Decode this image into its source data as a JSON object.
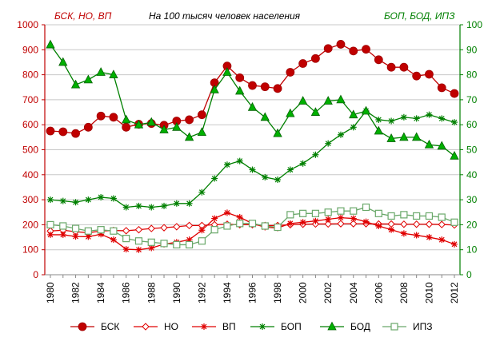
{
  "chart_data": {
    "type": "line",
    "title": "На 100 тысяч человек населения",
    "left_axis_title": "БСК, НО, ВП",
    "right_axis_title": "БОП, БОД, ИПЗ",
    "colors": {
      "left_axis": "#c00000",
      "right_axis": "#008000",
      "grid": "#c8c8c8"
    },
    "x": [
      1980,
      1981,
      1982,
      1983,
      1984,
      1985,
      1986,
      1987,
      1988,
      1989,
      1990,
      1991,
      1992,
      1993,
      1994,
      1995,
      1996,
      1997,
      1998,
      1999,
      2000,
      2001,
      2002,
      2003,
      2004,
      2005,
      2006,
      2007,
      2008,
      2009,
      2010,
      2011,
      2012
    ],
    "x_tick_labels": [
      "1980",
      "1982",
      "1984",
      "1986",
      "1988",
      "1990",
      "1992",
      "1994",
      "1996",
      "1998",
      "2000",
      "2002",
      "2004",
      "2006",
      "2008",
      "2010",
      "2012"
    ],
    "y_left": {
      "min": 0,
      "max": 1000,
      "ticks": [
        "0",
        "100",
        "200",
        "300",
        "400",
        "500",
        "600",
        "700",
        "800",
        "900",
        "1000"
      ]
    },
    "y_right": {
      "min": 0,
      "max": 100,
      "ticks": [
        "0",
        "10",
        "20",
        "30",
        "40",
        "50",
        "60",
        "70",
        "80",
        "90",
        "100"
      ]
    },
    "grid": true,
    "legend_position": "bottom",
    "series": [
      {
        "name": "БСК",
        "axis": "left",
        "color": "#c00000",
        "marker": "filled-circle",
        "values": [
          575,
          572,
          565,
          590,
          635,
          630,
          590,
          602,
          605,
          598,
          615,
          620,
          640,
          768,
          835,
          788,
          757,
          752,
          745,
          810,
          845,
          865,
          905,
          922,
          895,
          902,
          860,
          830,
          830,
          795,
          802,
          748,
          725
        ]
      },
      {
        "name": "НО",
        "axis": "left",
        "color": "#e00000",
        "marker": "open-diamond",
        "values": [
          175,
          178,
          172,
          168,
          175,
          177,
          176,
          180,
          185,
          188,
          192,
          197,
          197,
          200,
          202,
          200,
          200,
          197,
          197,
          200,
          202,
          203,
          203,
          204,
          204,
          204,
          203,
          203,
          202,
          202,
          202,
          201,
          199
        ]
      },
      {
        "name": "ВП",
        "axis": "left",
        "color": "#e00000",
        "marker": "star",
        "values": [
          160,
          160,
          153,
          152,
          162,
          140,
          102,
          100,
          107,
          122,
          130,
          140,
          178,
          225,
          248,
          230,
          205,
          190,
          187,
          205,
          210,
          215,
          222,
          228,
          225,
          212,
          195,
          180,
          165,
          158,
          150,
          140,
          122
        ]
      },
      {
        "name": "БОП",
        "axis": "right",
        "color": "#008000",
        "marker": "star",
        "values": [
          30,
          29.5,
          29,
          30,
          31,
          30.5,
          27,
          27.5,
          27,
          27.5,
          28.5,
          28.5,
          33,
          38.5,
          44,
          45.5,
          42,
          39,
          38,
          42,
          44.5,
          48,
          52.5,
          56,
          59,
          65.5,
          62,
          61.5,
          63,
          62.5,
          64,
          62.5,
          61
        ]
      },
      {
        "name": "БОД",
        "axis": "right",
        "color": "#008000",
        "marker": "filled-triangle",
        "values": [
          92,
          85,
          76,
          78,
          81,
          80,
          62,
          60,
          61,
          58,
          59,
          55,
          57,
          74,
          81,
          73.5,
          67,
          63,
          56.5,
          64.5,
          69.5,
          65,
          69.5,
          70,
          64,
          65.5,
          57.5,
          54.5,
          55,
          55,
          52,
          51.5,
          47.5
        ]
      },
      {
        "name": "ИПЗ",
        "axis": "right",
        "color": "#6aa86a",
        "marker": "open-square",
        "values": [
          20,
          19.5,
          18.5,
          17.5,
          18,
          17.5,
          14.5,
          13.5,
          13,
          12.5,
          12,
          12,
          13.5,
          18,
          19.5,
          20.5,
          20.5,
          19.5,
          19,
          24,
          24.5,
          24.5,
          25,
          25.5,
          25.5,
          27,
          24.5,
          23.5,
          24,
          23.5,
          23.5,
          23,
          21
        ]
      }
    ]
  }
}
